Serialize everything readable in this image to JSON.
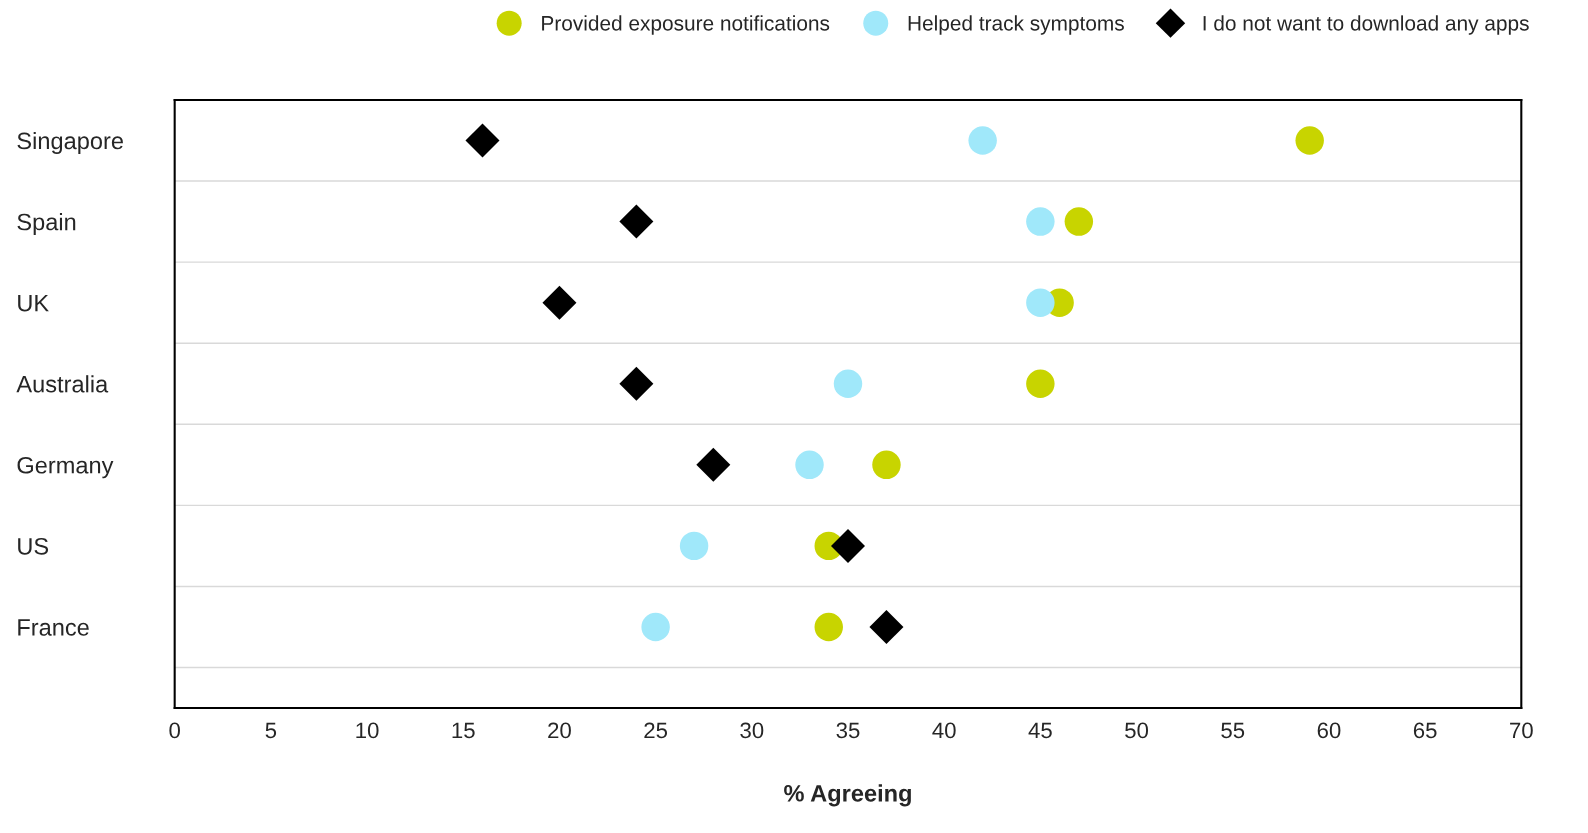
{
  "chart_data": {
    "type": "scatter",
    "orientation": "horizontal",
    "xlabel": "% Agreeing",
    "categories": [
      "Singapore",
      "Spain",
      "UK",
      "Australia",
      "Germany",
      "US",
      "France"
    ],
    "series": [
      {
        "name": "Provided exposure notifications",
        "color": "#c8d400",
        "marker": "circle",
        "values": [
          59,
          47,
          46,
          45,
          37,
          34,
          34
        ]
      },
      {
        "name": "Helped track symptoms",
        "color": "#a0e8fa",
        "marker": "circle",
        "values": [
          42,
          45,
          45,
          35,
          33,
          27,
          25
        ]
      },
      {
        "name": "I do not want to download any apps",
        "color": "#000000",
        "marker": "diamond",
        "values": [
          16,
          24,
          20,
          24,
          28,
          35,
          37
        ]
      }
    ],
    "xlim": [
      0,
      70
    ],
    "xticks": [
      0,
      5,
      10,
      15,
      20,
      25,
      30,
      35,
      40,
      45,
      50,
      55,
      60,
      65,
      70
    ],
    "grid": "y",
    "legend": "top right"
  }
}
